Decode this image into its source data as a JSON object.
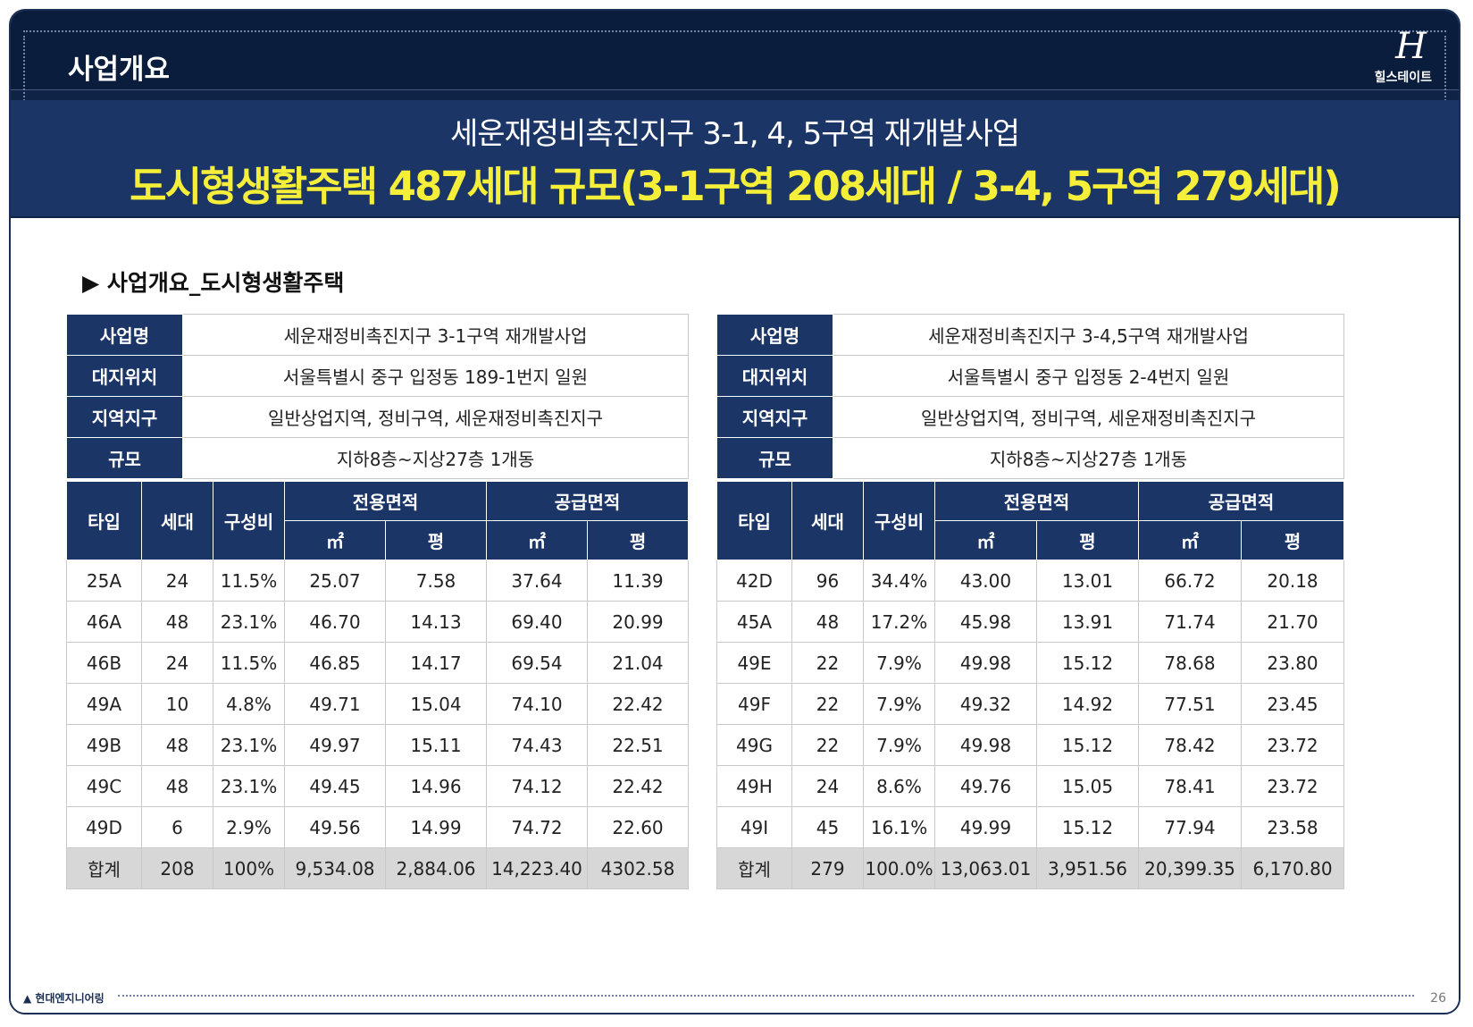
{
  "header": {
    "page_title": "사업개요",
    "logo_mark": "H",
    "logo_text": "힐스테이트",
    "sub_title": "세운재정비촉진지구 3-1, 4, 5구역 재개발사업",
    "main_title": "도시형생활주택 487세대 규모(3-1구역 208세대 / 3-4, 5구역 279세대)"
  },
  "section_title": "▶ 사업개요_도시형생활주택",
  "columns": {
    "type": "타입",
    "households": "세대",
    "ratio": "구성비",
    "exclusive_area": "전용면적",
    "supply_area": "공급면적",
    "sqm": "㎡",
    "pyeong": "평"
  },
  "left_table": {
    "info": [
      {
        "label": "사업명",
        "value": "세운재정비촉진지구 3-1구역 재개발사업"
      },
      {
        "label": "대지위치",
        "value": "서울특별시 중구 입정동 189-1번지 일원"
      },
      {
        "label": "지역지구",
        "value": "일반상업지역, 정비구역, 세운재정비촉진지구"
      },
      {
        "label": "규모",
        "value": "지하8층~지상27층 1개동"
      }
    ],
    "rows": [
      [
        "25A",
        "24",
        "11.5%",
        "25.07",
        "7.58",
        "37.64",
        "11.39"
      ],
      [
        "46A",
        "48",
        "23.1%",
        "46.70",
        "14.13",
        "69.40",
        "20.99"
      ],
      [
        "46B",
        "24",
        "11.5%",
        "46.85",
        "14.17",
        "69.54",
        "21.04"
      ],
      [
        "49A",
        "10",
        "4.8%",
        "49.71",
        "15.04",
        "74.10",
        "22.42"
      ],
      [
        "49B",
        "48",
        "23.1%",
        "49.97",
        "15.11",
        "74.43",
        "22.51"
      ],
      [
        "49C",
        "48",
        "23.1%",
        "49.45",
        "14.96",
        "74.12",
        "22.42"
      ],
      [
        "49D",
        "6",
        "2.9%",
        "49.56",
        "14.99",
        "74.72",
        "22.60"
      ]
    ],
    "total": [
      "합계",
      "208",
      "100%",
      "9,534.08",
      "2,884.06",
      "14,223.40",
      "4302.58"
    ]
  },
  "right_table": {
    "info": [
      {
        "label": "사업명",
        "value": "세운재정비촉진지구 3-4,5구역 재개발사업"
      },
      {
        "label": "대지위치",
        "value": "서울특별시 중구 입정동 2-4번지 일원"
      },
      {
        "label": "지역지구",
        "value": "일반상업지역, 정비구역, 세운재정비촉진지구"
      },
      {
        "label": "규모",
        "value": "지하8층~지상27층 1개동"
      }
    ],
    "rows": [
      [
        "42D",
        "96",
        "34.4%",
        "43.00",
        "13.01",
        "66.72",
        "20.18"
      ],
      [
        "45A",
        "48",
        "17.2%",
        "45.98",
        "13.91",
        "71.74",
        "21.70"
      ],
      [
        "49E",
        "22",
        "7.9%",
        "49.98",
        "15.12",
        "78.68",
        "23.80"
      ],
      [
        "49F",
        "22",
        "7.9%",
        "49.32",
        "14.92",
        "77.51",
        "23.45"
      ],
      [
        "49G",
        "22",
        "7.9%",
        "49.98",
        "15.12",
        "78.42",
        "23.72"
      ],
      [
        "49H",
        "24",
        "8.6%",
        "49.76",
        "15.05",
        "78.41",
        "23.72"
      ],
      [
        "49I",
        "45",
        "16.1%",
        "49.99",
        "15.12",
        "77.94",
        "23.58"
      ]
    ],
    "total": [
      "합계",
      "279",
      "100.0%",
      "13,063.01",
      "3,951.56",
      "20,399.35",
      "6,170.80"
    ]
  },
  "footer": {
    "company": "현대엔지니어링",
    "page_number": "26"
  },
  "colors": {
    "navy": "#1a3566",
    "header_dark": "#0a1d3c",
    "title_yellow": "#f5ef3a",
    "total_gray": "#d7d7d7"
  }
}
